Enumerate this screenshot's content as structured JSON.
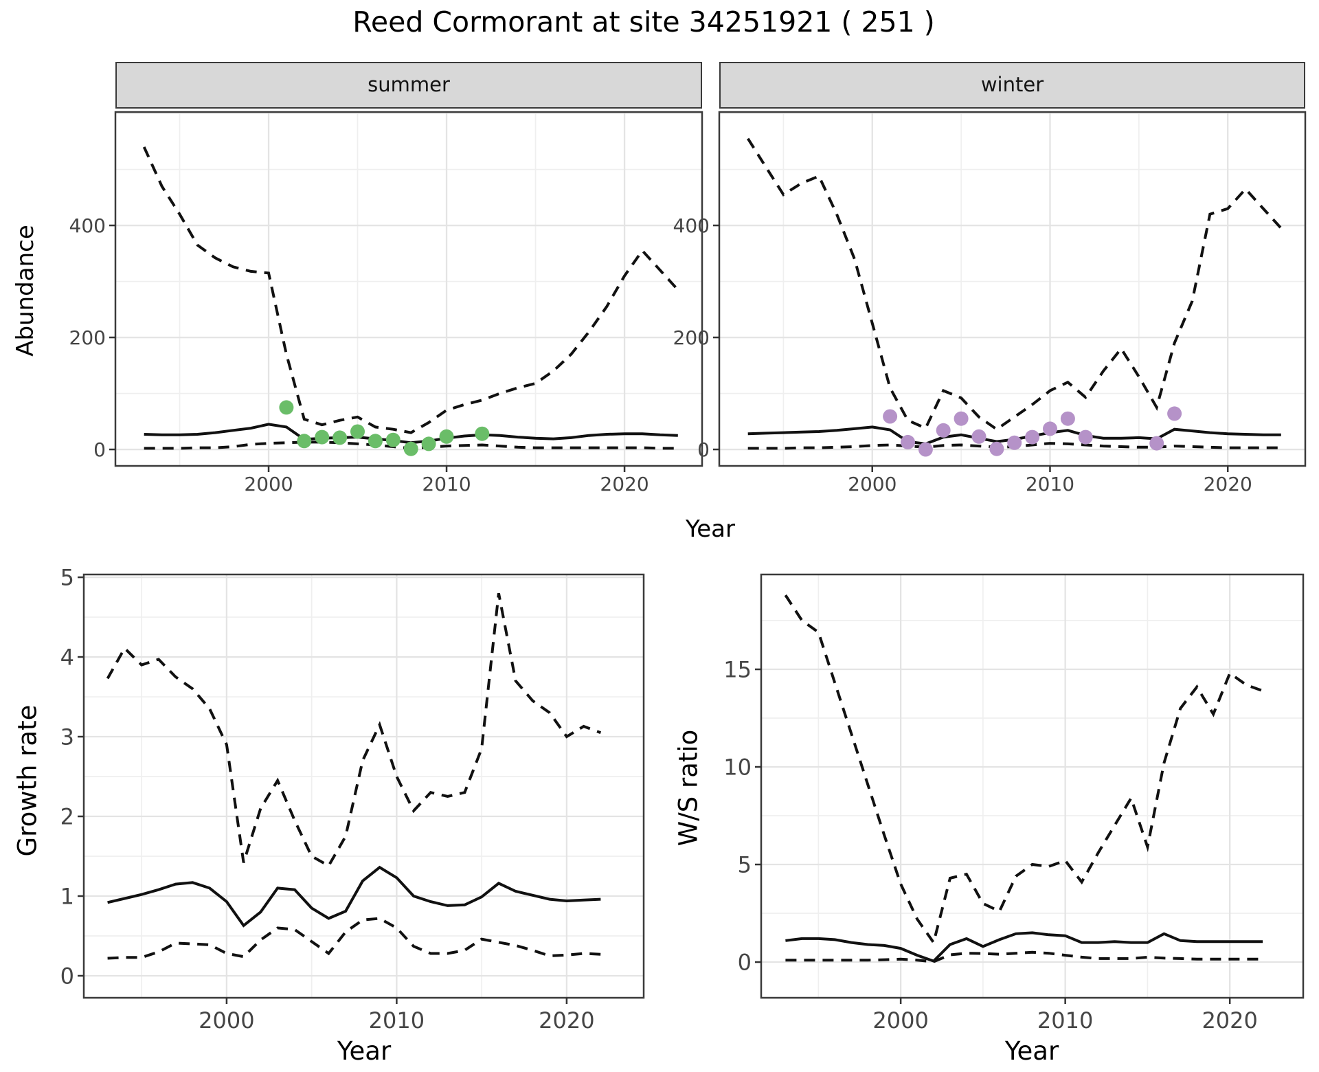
{
  "title": "Reed Cormorant at site 34251921 ( 251 )",
  "colors": {
    "summer_point": "#6abd68",
    "winter_point": "#b592c8",
    "line": "#111111",
    "strip_bg": "#d8d8d8",
    "grid_major": "#e4e4e4",
    "grid_minor": "#efefef",
    "panel_border": "#3a3a3a",
    "axis_text": "#454545"
  },
  "chart_data": [
    {
      "id": "abundance_summer",
      "type": "line",
      "facet_label": "summer",
      "ylabel": "Abundance",
      "xlabel": "Year",
      "legend_position": "none",
      "grid": true,
      "years": [
        1993,
        1994,
        1995,
        1996,
        1997,
        1998,
        1999,
        2000,
        2001,
        2002,
        2003,
        2004,
        2005,
        2006,
        2007,
        2008,
        2009,
        2010,
        2011,
        2012,
        2013,
        2014,
        2015,
        2016,
        2017,
        2018,
        2019,
        2020,
        2021,
        2022,
        2023
      ],
      "series": [
        {
          "name": "upper_95ci",
          "style": "dashed",
          "values": [
            540,
            470,
            420,
            365,
            342,
            326,
            318,
            315,
            170,
            54,
            44,
            52,
            58,
            40,
            36,
            30,
            48,
            70,
            80,
            88,
            100,
            110,
            118,
            140,
            170,
            210,
            255,
            310,
            355,
            320,
            285
          ]
        },
        {
          "name": "median",
          "style": "solid",
          "values": [
            27,
            26,
            26,
            27,
            30,
            34,
            38,
            45,
            40,
            18,
            20,
            21,
            22,
            19,
            16,
            12,
            15,
            20,
            24,
            26,
            25,
            22,
            20,
            19,
            21,
            25,
            27,
            28,
            28,
            26,
            25
          ]
        },
        {
          "name": "lower_95ci",
          "style": "dashed",
          "values": [
            2,
            2,
            2,
            3,
            3,
            5,
            9,
            11,
            12,
            13,
            13,
            12,
            10,
            8,
            5,
            2,
            4,
            6,
            7,
            8,
            6,
            4,
            3,
            3,
            3,
            3,
            3,
            3,
            3,
            2,
            2
          ]
        }
      ],
      "observed_points": {
        "color_key": "summer_point",
        "years": [
          2001,
          2002,
          2003,
          2004,
          2005,
          2006,
          2007,
          2008,
          2009,
          2010,
          2012
        ],
        "values": [
          75,
          15,
          22,
          21,
          32,
          15,
          17,
          1,
          10,
          23,
          28
        ]
      },
      "xlim": [
        1991.39,
        2024.36
      ],
      "ylim": [
        -29.4,
        602.5
      ],
      "xticks": [
        2000,
        2010,
        2020
      ],
      "xticks_minor": [
        1995,
        2005,
        2015
      ],
      "yticks": [
        0,
        200,
        400
      ],
      "yticks_minor": [
        100,
        300,
        500,
        600
      ]
    },
    {
      "id": "abundance_winter",
      "type": "line",
      "facet_label": "winter",
      "ylabel": "Abundance",
      "xlabel": "Year",
      "legend_position": "none",
      "grid": true,
      "years": [
        1993,
        1994,
        1995,
        1996,
        1997,
        1998,
        1999,
        2000,
        2001,
        2002,
        2003,
        2004,
        2005,
        2006,
        2007,
        2008,
        2009,
        2010,
        2011,
        2012,
        2013,
        2014,
        2015,
        2016,
        2017,
        2018,
        2019,
        2020,
        2021,
        2022,
        2023
      ],
      "series": [
        {
          "name": "upper_95ci",
          "style": "dashed",
          "values": [
            555,
            505,
            455,
            475,
            488,
            420,
            340,
            225,
            110,
            52,
            38,
            105,
            92,
            58,
            36,
            58,
            80,
            105,
            120,
            93,
            140,
            180,
            130,
            75,
            190,
            265,
            420,
            430,
            465,
            430,
            395
          ]
        },
        {
          "name": "median",
          "style": "solid",
          "values": [
            28,
            29,
            30,
            31,
            32,
            34,
            37,
            40,
            35,
            14,
            10,
            22,
            26,
            20,
            14,
            18,
            24,
            30,
            34,
            25,
            20,
            20,
            21,
            19,
            36,
            33,
            30,
            28,
            27,
            26,
            26
          ]
        },
        {
          "name": "lower_95ci",
          "style": "dashed",
          "values": [
            2,
            2,
            2,
            3,
            3,
            4,
            5,
            7,
            8,
            6,
            4,
            7,
            8,
            6,
            4,
            5,
            8,
            11,
            10,
            8,
            6,
            5,
            4,
            4,
            6,
            5,
            4,
            3,
            3,
            3,
            3
          ]
        }
      ],
      "observed_points": {
        "color_key": "winter_point",
        "years": [
          2001,
          2002,
          2003,
          2004,
          2005,
          2006,
          2007,
          2008,
          2009,
          2010,
          2011,
          2012,
          2016,
          2017
        ],
        "values": [
          59,
          13,
          0,
          34,
          55,
          23,
          1,
          12,
          22,
          37,
          55,
          22,
          11,
          64
        ]
      },
      "xlim": [
        1991.39,
        2024.36
      ],
      "ylim": [
        -29.4,
        602.5
      ],
      "xticks": [
        2000,
        2010,
        2020
      ],
      "xticks_minor": [
        1995,
        2005,
        2015
      ],
      "yticks": [
        0,
        200,
        400
      ],
      "yticks_minor": [
        100,
        300,
        500,
        600
      ]
    },
    {
      "id": "growth_rate",
      "type": "line",
      "facet_label": "",
      "ylabel": "Growth rate",
      "xlabel": "Year",
      "legend_position": "none",
      "grid": true,
      "years": [
        1993,
        1994,
        1995,
        1996,
        1997,
        1998,
        1999,
        2000,
        2001,
        2002,
        2003,
        2004,
        2005,
        2006,
        2007,
        2008,
        2009,
        2010,
        2011,
        2012,
        2013,
        2014,
        2015,
        2016,
        2017,
        2018,
        2019,
        2020,
        2021,
        2022
      ],
      "series": [
        {
          "name": "upper_95ci",
          "style": "dashed",
          "values": [
            3.73,
            4.11,
            3.9,
            3.97,
            3.75,
            3.6,
            3.35,
            2.9,
            1.42,
            2.1,
            2.45,
            1.95,
            1.5,
            1.38,
            1.75,
            2.7,
            3.15,
            2.5,
            2.07,
            2.3,
            2.25,
            2.3,
            2.85,
            4.8,
            3.7,
            3.45,
            3.3,
            3.0,
            3.13,
            3.05
          ]
        },
        {
          "name": "median",
          "style": "solid",
          "values": [
            0.92,
            0.97,
            1.02,
            1.08,
            1.15,
            1.17,
            1.1,
            0.93,
            0.63,
            0.8,
            1.1,
            1.08,
            0.85,
            0.72,
            0.81,
            1.19,
            1.36,
            1.23,
            1.0,
            0.93,
            0.88,
            0.89,
            0.99,
            1.16,
            1.06,
            1.01,
            0.96,
            0.94,
            0.95,
            0.96
          ]
        },
        {
          "name": "lower_95ci",
          "style": "dashed",
          "values": [
            0.22,
            0.23,
            0.23,
            0.3,
            0.41,
            0.4,
            0.39,
            0.28,
            0.24,
            0.45,
            0.6,
            0.58,
            0.43,
            0.28,
            0.55,
            0.7,
            0.72,
            0.6,
            0.37,
            0.28,
            0.28,
            0.32,
            0.46,
            0.42,
            0.38,
            0.32,
            0.25,
            0.26,
            0.28,
            0.27
          ]
        }
      ],
      "xlim": [
        1991.6,
        2024.53
      ],
      "ylim": [
        -0.276,
        5.035
      ],
      "xticks": [
        2000,
        2010,
        2020
      ],
      "xticks_minor": [
        1995,
        2005,
        2015
      ],
      "yticks": [
        0,
        1,
        2,
        3,
        4,
        5
      ],
      "yticks_minor": [
        0.5,
        1.5,
        2.5,
        3.5,
        4.5
      ]
    },
    {
      "id": "ws_ratio",
      "type": "line",
      "facet_label": "",
      "ylabel": "W/S ratio",
      "xlabel": "Year",
      "legend_position": "none",
      "grid": true,
      "years": [
        1993,
        1994,
        1995,
        1996,
        1997,
        1998,
        1999,
        2000,
        2001,
        2002,
        2003,
        2004,
        2005,
        2006,
        2007,
        2008,
        2009,
        2010,
        2011,
        2012,
        2013,
        2014,
        2015,
        2016,
        2017,
        2018,
        2019,
        2020,
        2021,
        2022
      ],
      "series": [
        {
          "name": "upper_95ci",
          "style": "dashed",
          "values": [
            18.8,
            17.5,
            16.9,
            14.3,
            11.7,
            9.1,
            6.5,
            4.0,
            2.2,
            1.0,
            4.3,
            4.5,
            3.0,
            2.6,
            4.4,
            5.0,
            4.9,
            5.2,
            4.1,
            5.6,
            7.0,
            8.4,
            5.9,
            10.2,
            13.0,
            14.1,
            12.7,
            14.8,
            14.2,
            13.9
          ]
        },
        {
          "name": "median",
          "style": "solid",
          "values": [
            1.1,
            1.2,
            1.2,
            1.15,
            1.0,
            0.9,
            0.85,
            0.7,
            0.35,
            0.05,
            0.9,
            1.2,
            0.8,
            1.15,
            1.45,
            1.5,
            1.4,
            1.35,
            1.0,
            1.0,
            1.05,
            1.0,
            1.0,
            1.45,
            1.1,
            1.05,
            1.05,
            1.05,
            1.05,
            1.05
          ]
        },
        {
          "name": "lower_95ci",
          "style": "dashed",
          "values": [
            0.1,
            0.1,
            0.1,
            0.1,
            0.1,
            0.1,
            0.12,
            0.15,
            0.1,
            0.02,
            0.37,
            0.45,
            0.44,
            0.4,
            0.45,
            0.5,
            0.45,
            0.35,
            0.25,
            0.18,
            0.18,
            0.18,
            0.25,
            0.2,
            0.18,
            0.15,
            0.15,
            0.15,
            0.15,
            0.15
          ]
        }
      ],
      "xlim": [
        1991.52,
        2024.46
      ],
      "ylim": [
        -1.83,
        19.86
      ],
      "xticks": [
        2000,
        2010,
        2020
      ],
      "xticks_minor": [
        1995,
        2005,
        2015
      ],
      "yticks": [
        0,
        5,
        10,
        15
      ],
      "yticks_minor": [
        2.5,
        7.5,
        12.5,
        17.5
      ]
    }
  ]
}
